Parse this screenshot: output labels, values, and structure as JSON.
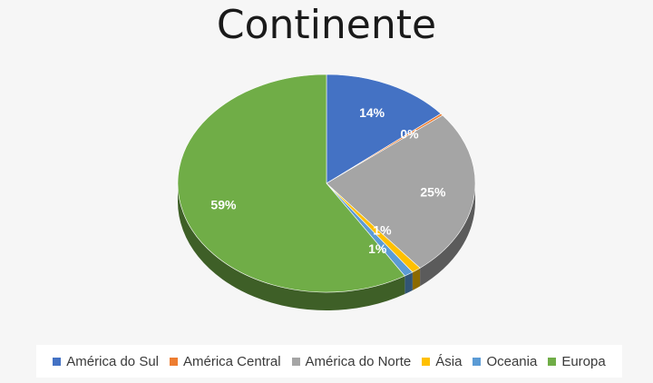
{
  "chart_data": {
    "type": "pie",
    "title": "Continente",
    "slices": [
      {
        "name": "América do Sul",
        "value": 14,
        "label": "14%",
        "color": "#4472c4"
      },
      {
        "name": "América Central",
        "value": 0.3,
        "label": "0%",
        "color": "#ed7d31"
      },
      {
        "name": "América do Norte",
        "value": 25,
        "label": "25%",
        "color": "#a5a5a5"
      },
      {
        "name": "Ásia",
        "value": 1,
        "label": "1%",
        "color": "#ffc000"
      },
      {
        "name": "Oceania",
        "value": 1,
        "label": "1%",
        "color": "#5b9bd5"
      },
      {
        "name": "Europa",
        "value": 59,
        "label": "59%",
        "color": "#70ad47"
      }
    ],
    "legend_position": "bottom"
  }
}
